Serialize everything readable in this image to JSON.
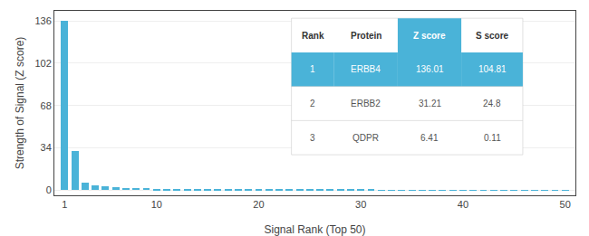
{
  "chart_data": {
    "type": "bar",
    "x": [
      1,
      2,
      3,
      4,
      5,
      6,
      7,
      8,
      9,
      10,
      11,
      12,
      13,
      14,
      15,
      16,
      17,
      18,
      19,
      20,
      21,
      22,
      23,
      24,
      25,
      26,
      27,
      28,
      29,
      30,
      31,
      32,
      33,
      34,
      35,
      36,
      37,
      38,
      39,
      40,
      41,
      42,
      43,
      44,
      45,
      46,
      47,
      48,
      49,
      50
    ],
    "values": [
      136.01,
      31.21,
      6.41,
      4.2,
      3.1,
      2.5,
      2.1,
      1.8,
      1.6,
      1.4,
      1.2,
      1.1,
      1.0,
      0.9,
      0.85,
      0.8,
      0.75,
      0.7,
      0.65,
      0.6,
      0.58,
      0.55,
      0.52,
      0.5,
      0.48,
      0.46,
      0.44,
      0.42,
      0.4,
      0.38,
      0.36,
      0.34,
      0.32,
      0.3,
      0.28,
      0.26,
      0.25,
      0.24,
      0.23,
      0.22,
      0.21,
      0.2,
      0.19,
      0.18,
      0.17,
      0.16,
      0.15,
      0.14,
      0.13,
      0.12
    ],
    "color": "#4ab3d8",
    "xlabel": "Signal Rank (Top 50)",
    "ylabel": "Strength of Signal (Z score)",
    "xlim": [
      0,
      51
    ],
    "xticks": [
      1,
      10,
      20,
      30,
      40,
      50
    ],
    "ylim": [
      -4,
      144
    ],
    "yticks": [
      0,
      34,
      68,
      102,
      136
    ],
    "grid": true,
    "table": {
      "header": [
        "Rank",
        "Protein",
        "Z score",
        "S score"
      ],
      "rows": [
        [
          "1",
          "ERBB4",
          "136.01",
          "104.81"
        ],
        [
          "2",
          "ERBB2",
          "31.21",
          "24.8"
        ],
        [
          "3",
          "QDPR",
          "6.41",
          "0.11"
        ]
      ]
    }
  }
}
